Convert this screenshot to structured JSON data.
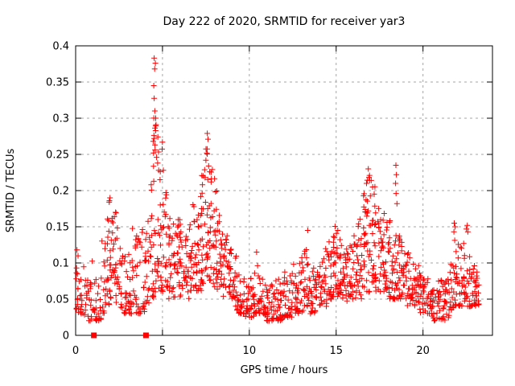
{
  "chart_data": {
    "type": "scatter",
    "title": "Day 222 of 2020, SRMTID for receiver yar3",
    "xlabel": "GPS time / hours",
    "ylabel": "SRMTID / TECUs",
    "xlim": [
      0,
      24
    ],
    "ylim": [
      0,
      0.4
    ],
    "xticks": [
      0,
      5,
      10,
      15,
      20
    ],
    "xticklabels": [
      "0",
      "5",
      "10",
      "15",
      "20"
    ],
    "yticks": [
      0,
      0.05,
      0.1,
      0.15,
      0.2,
      0.25,
      0.3,
      0.35,
      0.4
    ],
    "yticklabels": [
      "0",
      "0.05",
      "0.1",
      "0.15",
      "0.2",
      "0.25",
      "0.3",
      "0.35",
      "0.4"
    ],
    "grid": {
      "enabled": true,
      "style": "dashed",
      "color": "#a6a6a6"
    },
    "legend": "none",
    "marker": {
      "shape": "plus",
      "color": "#ff0000",
      "size": 7
    },
    "background_color": "#ffffff",
    "axis_color": "#000000",
    "random_seed": 1337,
    "zero_axis_squares_x": [
      1.05,
      4.05
    ],
    "notable_points": [
      [
        4.52,
        0.383
      ],
      [
        4.59,
        0.376
      ],
      [
        4.55,
        0.368
      ],
      [
        4.5,
        0.345
      ],
      [
        4.56,
        0.31
      ],
      [
        4.61,
        0.3
      ],
      [
        4.63,
        0.291
      ],
      [
        4.52,
        0.272
      ],
      [
        4.57,
        0.263
      ],
      [
        4.48,
        0.252
      ],
      [
        4.66,
        0.246
      ],
      [
        4.72,
        0.238
      ],
      [
        4.78,
        0.228
      ],
      [
        4.86,
        0.215
      ],
      [
        5.05,
        0.228
      ],
      [
        7.58,
        0.279
      ],
      [
        7.62,
        0.271
      ],
      [
        7.55,
        0.252
      ],
      [
        7.5,
        0.242
      ],
      [
        7.66,
        0.234
      ],
      [
        7.72,
        0.226
      ],
      [
        7.45,
        0.218
      ],
      [
        7.8,
        0.212
      ],
      [
        16.85,
        0.23
      ],
      [
        16.92,
        0.221
      ],
      [
        17.02,
        0.214
      ],
      [
        17.1,
        0.205
      ],
      [
        16.75,
        0.21
      ],
      [
        18.44,
        0.235
      ],
      [
        18.47,
        0.222
      ],
      [
        18.42,
        0.21
      ],
      [
        18.45,
        0.196
      ],
      [
        18.5,
        0.182
      ],
      [
        21.8,
        0.155
      ],
      [
        21.85,
        0.15
      ],
      [
        21.78,
        0.143
      ],
      [
        1.98,
        0.19
      ],
      [
        1.93,
        0.184
      ],
      [
        2.3,
        0.17
      ],
      [
        10.42,
        0.115
      ],
      [
        13.36,
        0.145
      ],
      [
        0.08,
        0.118
      ],
      [
        22.5,
        0.147
      ],
      [
        22.55,
        0.152
      ]
    ],
    "density_bins": [
      [
        0.125,
        16,
        0.03,
        0.06,
        0.12
      ],
      [
        0.375,
        14,
        0.03,
        0.05,
        0.1
      ],
      [
        0.625,
        13,
        0.02,
        0.05,
        0.09
      ],
      [
        0.875,
        13,
        0.02,
        0.05,
        0.115
      ],
      [
        1.125,
        12,
        0.02,
        0.04,
        0.09
      ],
      [
        1.375,
        12,
        0.02,
        0.05,
        0.1
      ],
      [
        1.625,
        15,
        0.03,
        0.08,
        0.15
      ],
      [
        1.875,
        18,
        0.04,
        0.1,
        0.19
      ],
      [
        2.125,
        18,
        0.04,
        0.1,
        0.165
      ],
      [
        2.375,
        15,
        0.04,
        0.08,
        0.17
      ],
      [
        2.625,
        15,
        0.03,
        0.07,
        0.12
      ],
      [
        2.875,
        15,
        0.03,
        0.06,
        0.11
      ],
      [
        3.125,
        15,
        0.03,
        0.06,
        0.12
      ],
      [
        3.375,
        15,
        0.03,
        0.07,
        0.17
      ],
      [
        3.625,
        15,
        0.03,
        0.07,
        0.14
      ],
      [
        3.875,
        15,
        0.03,
        0.08,
        0.15
      ],
      [
        4.125,
        17,
        0.04,
        0.09,
        0.17
      ],
      [
        4.375,
        20,
        0.05,
        0.13,
        0.3
      ],
      [
        4.625,
        22,
        0.06,
        0.16,
        0.34
      ],
      [
        4.875,
        20,
        0.06,
        0.14,
        0.28
      ],
      [
        5.125,
        18,
        0.06,
        0.12,
        0.23
      ],
      [
        5.375,
        17,
        0.05,
        0.1,
        0.17
      ],
      [
        5.625,
        17,
        0.05,
        0.1,
        0.16
      ],
      [
        5.875,
        17,
        0.05,
        0.11,
        0.16
      ],
      [
        6.125,
        17,
        0.05,
        0.1,
        0.155
      ],
      [
        6.375,
        15,
        0.05,
        0.09,
        0.14
      ],
      [
        6.625,
        17,
        0.05,
        0.1,
        0.16
      ],
      [
        6.875,
        18,
        0.06,
        0.11,
        0.185
      ],
      [
        7.125,
        20,
        0.06,
        0.12,
        0.2
      ],
      [
        7.375,
        20,
        0.07,
        0.14,
        0.23
      ],
      [
        7.625,
        22,
        0.07,
        0.15,
        0.26
      ],
      [
        7.875,
        20,
        0.07,
        0.14,
        0.23
      ],
      [
        8.125,
        18,
        0.06,
        0.12,
        0.2
      ],
      [
        8.375,
        18,
        0.06,
        0.11,
        0.175
      ],
      [
        8.625,
        17,
        0.05,
        0.09,
        0.14
      ],
      [
        8.875,
        17,
        0.05,
        0.08,
        0.12
      ],
      [
        9.125,
        15,
        0.04,
        0.07,
        0.11
      ],
      [
        9.375,
        15,
        0.03,
        0.05,
        0.09
      ],
      [
        9.625,
        15,
        0.03,
        0.045,
        0.08
      ],
      [
        9.875,
        15,
        0.025,
        0.04,
        0.07
      ],
      [
        10.125,
        15,
        0.025,
        0.045,
        0.08
      ],
      [
        10.375,
        15,
        0.03,
        0.05,
        0.11
      ],
      [
        10.625,
        15,
        0.03,
        0.05,
        0.09
      ],
      [
        10.875,
        15,
        0.025,
        0.045,
        0.08
      ],
      [
        11.125,
        15,
        0.02,
        0.04,
        0.075
      ],
      [
        11.375,
        15,
        0.02,
        0.04,
        0.075
      ],
      [
        11.625,
        15,
        0.02,
        0.045,
        0.08
      ],
      [
        11.875,
        15,
        0.02,
        0.045,
        0.08
      ],
      [
        12.125,
        15,
        0.025,
        0.05,
        0.09
      ],
      [
        12.375,
        15,
        0.025,
        0.05,
        0.09
      ],
      [
        12.625,
        15,
        0.03,
        0.055,
        0.1
      ],
      [
        12.875,
        15,
        0.03,
        0.055,
        0.1
      ],
      [
        13.125,
        15,
        0.03,
        0.06,
        0.12
      ],
      [
        13.375,
        15,
        0.04,
        0.07,
        0.14
      ],
      [
        13.625,
        15,
        0.03,
        0.06,
        0.11
      ],
      [
        13.875,
        15,
        0.03,
        0.06,
        0.1
      ],
      [
        14.125,
        15,
        0.04,
        0.07,
        0.11
      ],
      [
        14.375,
        15,
        0.04,
        0.08,
        0.12
      ],
      [
        14.625,
        17,
        0.05,
        0.09,
        0.14
      ],
      [
        14.875,
        18,
        0.05,
        0.1,
        0.155
      ],
      [
        15.125,
        18,
        0.05,
        0.1,
        0.16
      ],
      [
        15.375,
        17,
        0.05,
        0.09,
        0.13
      ],
      [
        15.625,
        17,
        0.04,
        0.08,
        0.12
      ],
      [
        15.875,
        17,
        0.05,
        0.08,
        0.13
      ],
      [
        16.125,
        17,
        0.05,
        0.09,
        0.14
      ],
      [
        16.375,
        18,
        0.05,
        0.1,
        0.17
      ],
      [
        16.625,
        20,
        0.06,
        0.12,
        0.2
      ],
      [
        16.875,
        20,
        0.06,
        0.13,
        0.22
      ],
      [
        17.125,
        20,
        0.06,
        0.13,
        0.21
      ],
      [
        17.375,
        18,
        0.06,
        0.12,
        0.2
      ],
      [
        17.625,
        18,
        0.06,
        0.11,
        0.175
      ],
      [
        17.875,
        18,
        0.06,
        0.11,
        0.17
      ],
      [
        18.125,
        17,
        0.05,
        0.1,
        0.16
      ],
      [
        18.375,
        17,
        0.05,
        0.1,
        0.19
      ],
      [
        18.625,
        17,
        0.05,
        0.09,
        0.15
      ],
      [
        18.875,
        17,
        0.05,
        0.09,
        0.14
      ],
      [
        19.125,
        15,
        0.04,
        0.08,
        0.12
      ],
      [
        19.375,
        15,
        0.04,
        0.07,
        0.11
      ],
      [
        19.625,
        15,
        0.04,
        0.06,
        0.1
      ],
      [
        19.875,
        15,
        0.03,
        0.06,
        0.09
      ],
      [
        20.125,
        15,
        0.03,
        0.05,
        0.08
      ],
      [
        20.375,
        15,
        0.03,
        0.05,
        0.08
      ],
      [
        20.625,
        15,
        0.02,
        0.045,
        0.075
      ],
      [
        20.875,
        15,
        0.02,
        0.045,
        0.075
      ],
      [
        21.125,
        15,
        0.02,
        0.045,
        0.08
      ],
      [
        21.375,
        15,
        0.02,
        0.045,
        0.08
      ],
      [
        21.625,
        15,
        0.03,
        0.05,
        0.1
      ],
      [
        21.875,
        17,
        0.04,
        0.07,
        0.15
      ],
      [
        22.125,
        15,
        0.04,
        0.07,
        0.13
      ],
      [
        22.375,
        15,
        0.04,
        0.08,
        0.13
      ],
      [
        22.625,
        15,
        0.04,
        0.07,
        0.145
      ],
      [
        22.875,
        15,
        0.04,
        0.06,
        0.1
      ],
      [
        23.125,
        17,
        0.04,
        0.06,
        0.09
      ]
    ]
  }
}
